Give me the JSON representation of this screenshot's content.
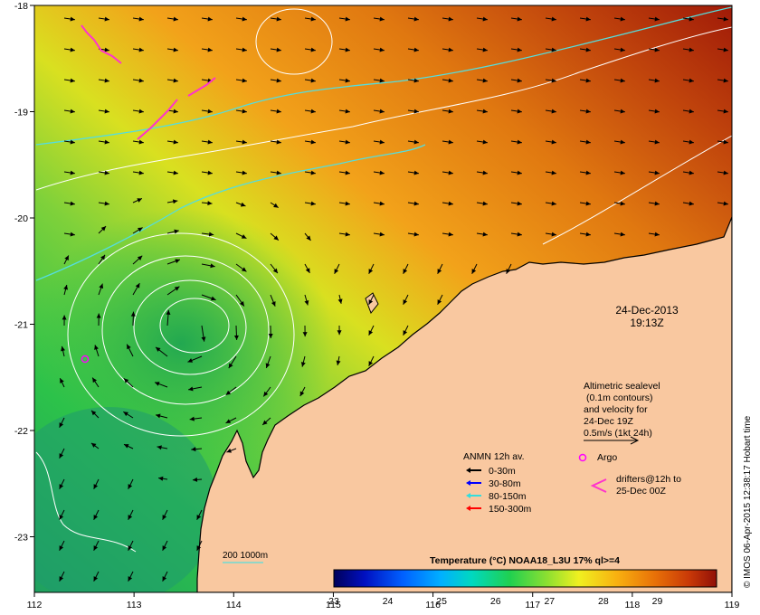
{
  "map": {
    "lon_ticks": [
      "112",
      "113",
      "114",
      "115",
      "116",
      "117",
      "118",
      "119"
    ],
    "lat_ticks": [
      "-18",
      "-19",
      "-20",
      "-21",
      "-22",
      "-23"
    ],
    "date": "24-Dec-2013",
    "time": "19:13Z",
    "altimetry_note": [
      "Altimetric sealevel",
      "(0.1m contours)",
      "and velocity for",
      "24-Dec 19Z",
      "0.5m/s (1kt 24h)"
    ],
    "legend_title": "ANMN 12h av.",
    "legend_items": [
      {
        "label": "0-30m",
        "color": "#000000"
      },
      {
        "label": "30-80m",
        "color": "#0000ff"
      },
      {
        "label": "80-150m",
        "color": "#33dddd"
      },
      {
        "label": "150-300m",
        "color": "#ff0000"
      }
    ],
    "argo_label": "Argo",
    "drifters_label_1": "drifters@12h to",
    "drifters_label_2": "25-Dec 00Z",
    "isobath_label": "200  1000m",
    "colorbar_title": "Temperature (°C) NOAA18_L3U 17% ql>=4",
    "colorbar_ticks": [
      "23",
      "24",
      "25",
      "26",
      "27",
      "28",
      "29"
    ],
    "side_credit": "© IMOS 06-Apr-2015 12:38:17 Hobart time",
    "colors": {
      "land": "#f9c8a0",
      "isobath": "#55dddd",
      "contour": "#ffffff",
      "argo": "#ff00ff",
      "drifter": "#ff33cc"
    }
  }
}
